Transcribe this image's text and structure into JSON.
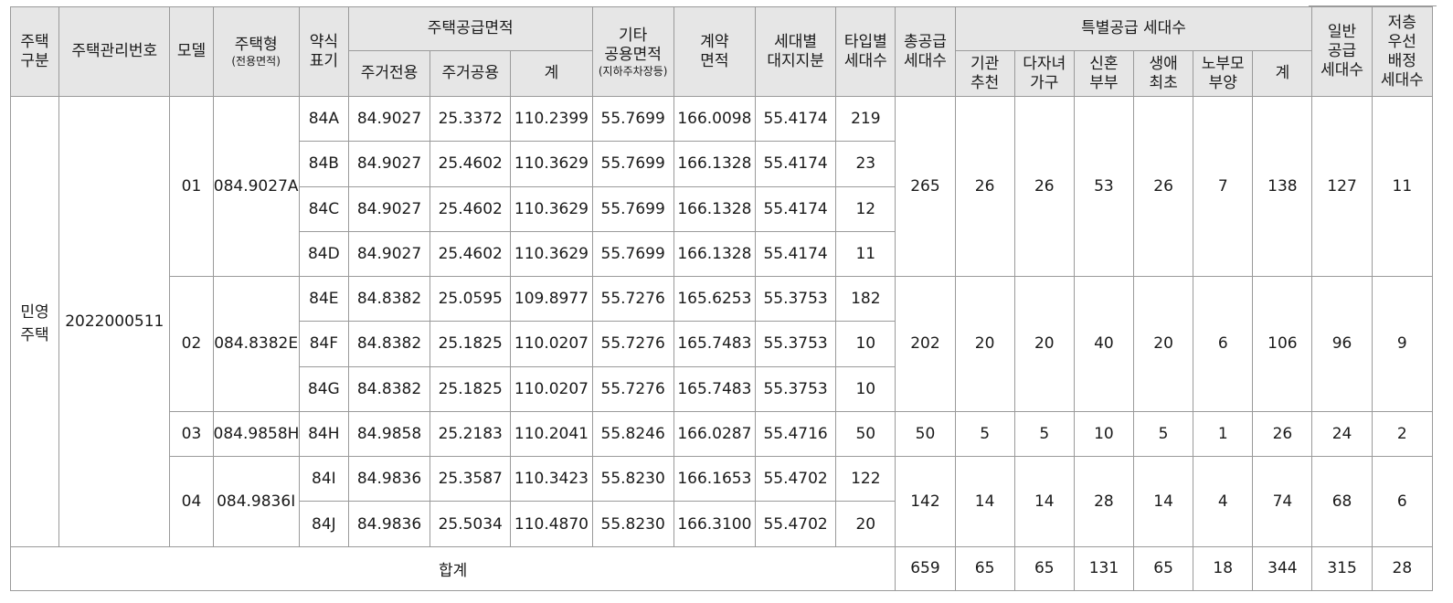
{
  "table": {
    "headers": {
      "housing_type_l1": "주택",
      "housing_type_l2": "구분",
      "mgmt_no": "주택관리번호",
      "model": "모델",
      "house_type": "주택형",
      "house_type_sub": "(전용면적)",
      "abbr_l1": "약식",
      "abbr_l2": "표기",
      "supply_area": "주택공급면적",
      "exclusive": "주거전용",
      "common": "주거공용",
      "area_total": "계",
      "other_l1": "기타",
      "other_l2": "공용면적",
      "other_l3": "(지하주차장등)",
      "contract_l1": "계약",
      "contract_l2": "면적",
      "land_l1": "세대별",
      "land_l2": "대지지분",
      "type_units_l1": "타입별",
      "type_units_l2": "세대수",
      "total_supply_l1": "총공급",
      "total_supply_l2": "세대수",
      "special": "특별공급 세대수",
      "institution_l1": "기관",
      "institution_l2": "추천",
      "multichild_l1": "다자녀",
      "multichild_l2": "가구",
      "newlywed_l1": "신혼",
      "newlywed_l2": "부부",
      "firsttime_l1": "생애",
      "firsttime_l2": "최초",
      "elderly_l1": "노부모",
      "elderly_l2": "부양",
      "special_total": "계",
      "general_l1": "일반",
      "general_l2": "공급",
      "general_l3": "세대수",
      "lowfloor_l1": "저층",
      "lowfloor_l2": "우선",
      "lowfloor_l3": "배정",
      "lowfloor_l4": "세대수"
    },
    "housing_category_l1": "민영",
    "housing_category_l2": "주택",
    "mgmt_number": "2022000511",
    "models": [
      {
        "model": "01",
        "house_type": "084.9027A",
        "total_supply": "265",
        "institution": "26",
        "multichild": "26",
        "newlywed": "53",
        "firsttime": "26",
        "elderly": "7",
        "special_total": "138",
        "general": "127",
        "lowfloor": "11",
        "rows": [
          {
            "abbr": "84A",
            "exclusive": "84.9027",
            "common": "25.3372",
            "total": "110.2399",
            "other": "55.7699",
            "contract": "166.0098",
            "land": "55.4174",
            "units": "219"
          },
          {
            "abbr": "84B",
            "exclusive": "84.9027",
            "common": "25.4602",
            "total": "110.3629",
            "other": "55.7699",
            "contract": "166.1328",
            "land": "55.4174",
            "units": "23"
          },
          {
            "abbr": "84C",
            "exclusive": "84.9027",
            "common": "25.4602",
            "total": "110.3629",
            "other": "55.7699",
            "contract": "166.1328",
            "land": "55.4174",
            "units": "12"
          },
          {
            "abbr": "84D",
            "exclusive": "84.9027",
            "common": "25.4602",
            "total": "110.3629",
            "other": "55.7699",
            "contract": "166.1328",
            "land": "55.4174",
            "units": "11"
          }
        ]
      },
      {
        "model": "02",
        "house_type": "084.8382E",
        "total_supply": "202",
        "institution": "20",
        "multichild": "20",
        "newlywed": "40",
        "firsttime": "20",
        "elderly": "6",
        "special_total": "106",
        "general": "96",
        "lowfloor": "9",
        "rows": [
          {
            "abbr": "84E",
            "exclusive": "84.8382",
            "common": "25.0595",
            "total": "109.8977",
            "other": "55.7276",
            "contract": "165.6253",
            "land": "55.3753",
            "units": "182"
          },
          {
            "abbr": "84F",
            "exclusive": "84.8382",
            "common": "25.1825",
            "total": "110.0207",
            "other": "55.7276",
            "contract": "165.7483",
            "land": "55.3753",
            "units": "10"
          },
          {
            "abbr": "84G",
            "exclusive": "84.8382",
            "common": "25.1825",
            "total": "110.0207",
            "other": "55.7276",
            "contract": "165.7483",
            "land": "55.3753",
            "units": "10"
          }
        ]
      },
      {
        "model": "03",
        "house_type": "084.9858H",
        "total_supply": "50",
        "institution": "5",
        "multichild": "5",
        "newlywed": "10",
        "firsttime": "5",
        "elderly": "1",
        "special_total": "26",
        "general": "24",
        "lowfloor": "2",
        "rows": [
          {
            "abbr": "84H",
            "exclusive": "84.9858",
            "common": "25.2183",
            "total": "110.2041",
            "other": "55.8246",
            "contract": "166.0287",
            "land": "55.4716",
            "units": "50"
          }
        ]
      },
      {
        "model": "04",
        "house_type": "084.9836I",
        "total_supply": "142",
        "institution": "14",
        "multichild": "14",
        "newlywed": "28",
        "firsttime": "14",
        "elderly": "4",
        "special_total": "74",
        "general": "68",
        "lowfloor": "6",
        "rows": [
          {
            "abbr": "84I",
            "exclusive": "84.9836",
            "common": "25.3587",
            "total": "110.3423",
            "other": "55.8230",
            "contract": "166.1653",
            "land": "55.4702",
            "units": "122"
          },
          {
            "abbr": "84J",
            "exclusive": "84.9836",
            "common": "25.5034",
            "total": "110.4870",
            "other": "55.8230",
            "contract": "166.3100",
            "land": "55.4702",
            "units": "20"
          }
        ]
      }
    ],
    "totals": {
      "label": "합계",
      "total_supply": "659",
      "institution": "65",
      "multichild": "65",
      "newlywed": "131",
      "firsttime": "65",
      "elderly": "18",
      "special_total": "344",
      "general": "315",
      "lowfloor": "28"
    }
  }
}
